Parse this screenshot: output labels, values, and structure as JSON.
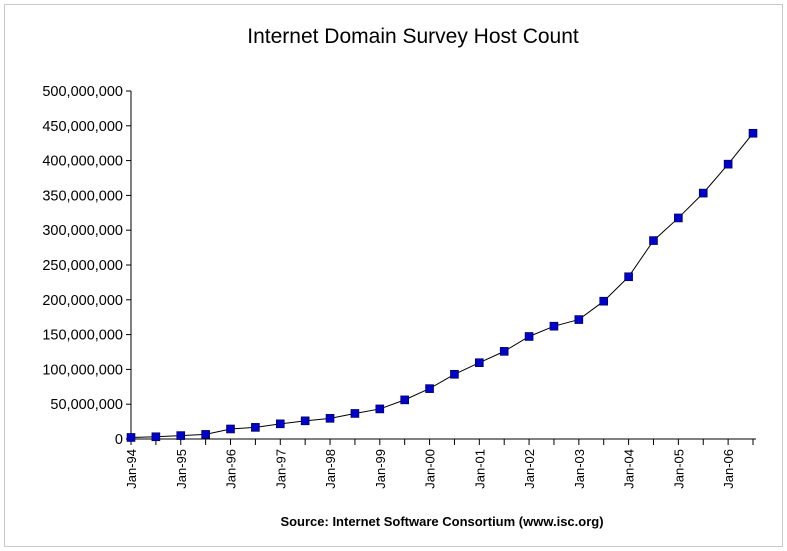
{
  "chart_data": {
    "type": "line",
    "title": "Internet Domain Survey Host Count",
    "source": "Source: Internet Software Consortium (www.isc.org)",
    "xlabel": "",
    "ylabel": "",
    "ylim": [
      0,
      500000000
    ],
    "y_ticks": [
      "0",
      "50,000,000",
      "100,000,000",
      "150,000,000",
      "200,000,000",
      "250,000,000",
      "300,000,000",
      "350,000,000",
      "400,000,000",
      "450,000,000",
      "500,000,000"
    ],
    "x_ticks": [
      "Jan-94",
      "Jan-95",
      "Jan-96",
      "Jan-97",
      "Jan-98",
      "Jan-99",
      "Jan-00",
      "Jan-01",
      "Jan-02",
      "Jan-03",
      "Jan-04",
      "Jan-05",
      "Jan-06"
    ],
    "x": [
      "Jan-94",
      "Jul-94",
      "Jan-95",
      "Jul-95",
      "Jan-96",
      "Jul-96",
      "Jan-97",
      "Jul-97",
      "Jan-98",
      "Jul-98",
      "Jan-99",
      "Jul-99",
      "Jan-00",
      "Jul-00",
      "Jan-01",
      "Jul-01",
      "Jan-02",
      "Jul-02",
      "Jan-03",
      "Jul-03",
      "Jan-04",
      "Jul-04",
      "Jan-05",
      "Jul-05",
      "Jan-06",
      "Jul-06"
    ],
    "series": [
      {
        "values": [
          2200000,
          3200000,
          4900000,
          6600000,
          14400000,
          16700000,
          21800000,
          26100000,
          29700000,
          36700000,
          43200000,
          56200000,
          72400000,
          93000000,
          109600000,
          125900000,
          147300000,
          162100000,
          171600000,
          198000000,
          233100000,
          285100000,
          317600000,
          353300000,
          394900000,
          439300000
        ],
        "color": "#0000cc"
      }
    ],
    "line_color": "#000000",
    "marker_color": "#0000cc",
    "grid": false,
    "legend": "none"
  }
}
